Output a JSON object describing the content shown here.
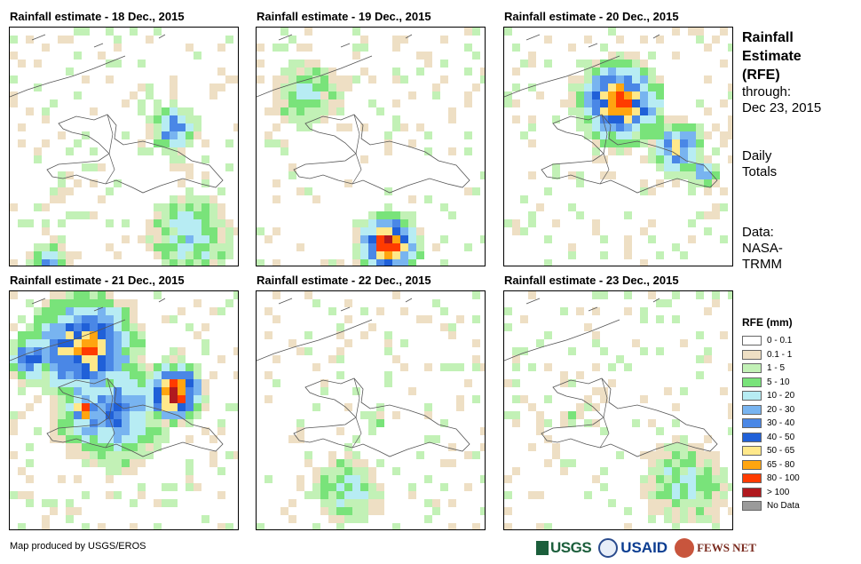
{
  "panels": [
    {
      "title": "Rainfall estimate - 18 Dec., 2015",
      "day": 18
    },
    {
      "title": "Rainfall estimate - 19 Dec., 2015",
      "day": 19
    },
    {
      "title": "Rainfall estimate - 20 Dec., 2015",
      "day": 20
    },
    {
      "title": "Rainfall estimate - 21 Dec., 2015",
      "day": 21
    },
    {
      "title": "Rainfall estimate - 22 Dec., 2015",
      "day": 22
    },
    {
      "title": "Rainfall estimate - 23 Dec., 2015",
      "day": 23
    }
  ],
  "sidebar": {
    "title_line1": "Rainfall",
    "title_line2": "Estimate",
    "title_line3": "(RFE)",
    "through": "through:",
    "date": "Dec 23, 2015",
    "totals_line1": "Daily",
    "totals_line2": "Totals",
    "data_line1": "Data:",
    "data_line2": "NASA-",
    "data_line3": "TRMM"
  },
  "legend": {
    "title": "RFE (mm)",
    "items": [
      {
        "label": "0 - 0.1",
        "color": "#ffffff"
      },
      {
        "label": "0.1 - 1",
        "color": "#eedfc4"
      },
      {
        "label": "1 - 5",
        "color": "#c2f1b6"
      },
      {
        "label": "5 - 10",
        "color": "#79e37a"
      },
      {
        "label": "10 - 20",
        "color": "#b7ecf3"
      },
      {
        "label": "20 - 30",
        "color": "#78b4f0"
      },
      {
        "label": "30 - 40",
        "color": "#4a87e6"
      },
      {
        "label": "40 - 50",
        "color": "#2060d8"
      },
      {
        "label": "50 - 65",
        "color": "#ffe88a"
      },
      {
        "label": "65 - 80",
        "color": "#ffa510"
      },
      {
        "label": "80 - 100",
        "color": "#ff3b00"
      },
      {
        "label": "> 100",
        "color": "#b0191e"
      },
      {
        "label": "No Data",
        "color": "#9a9a9a"
      }
    ]
  },
  "credit": "Map produced by USGS/EROS",
  "logos": {
    "usgs": "USGS",
    "usaid": "USAID",
    "fews": "FEWS NET"
  }
}
